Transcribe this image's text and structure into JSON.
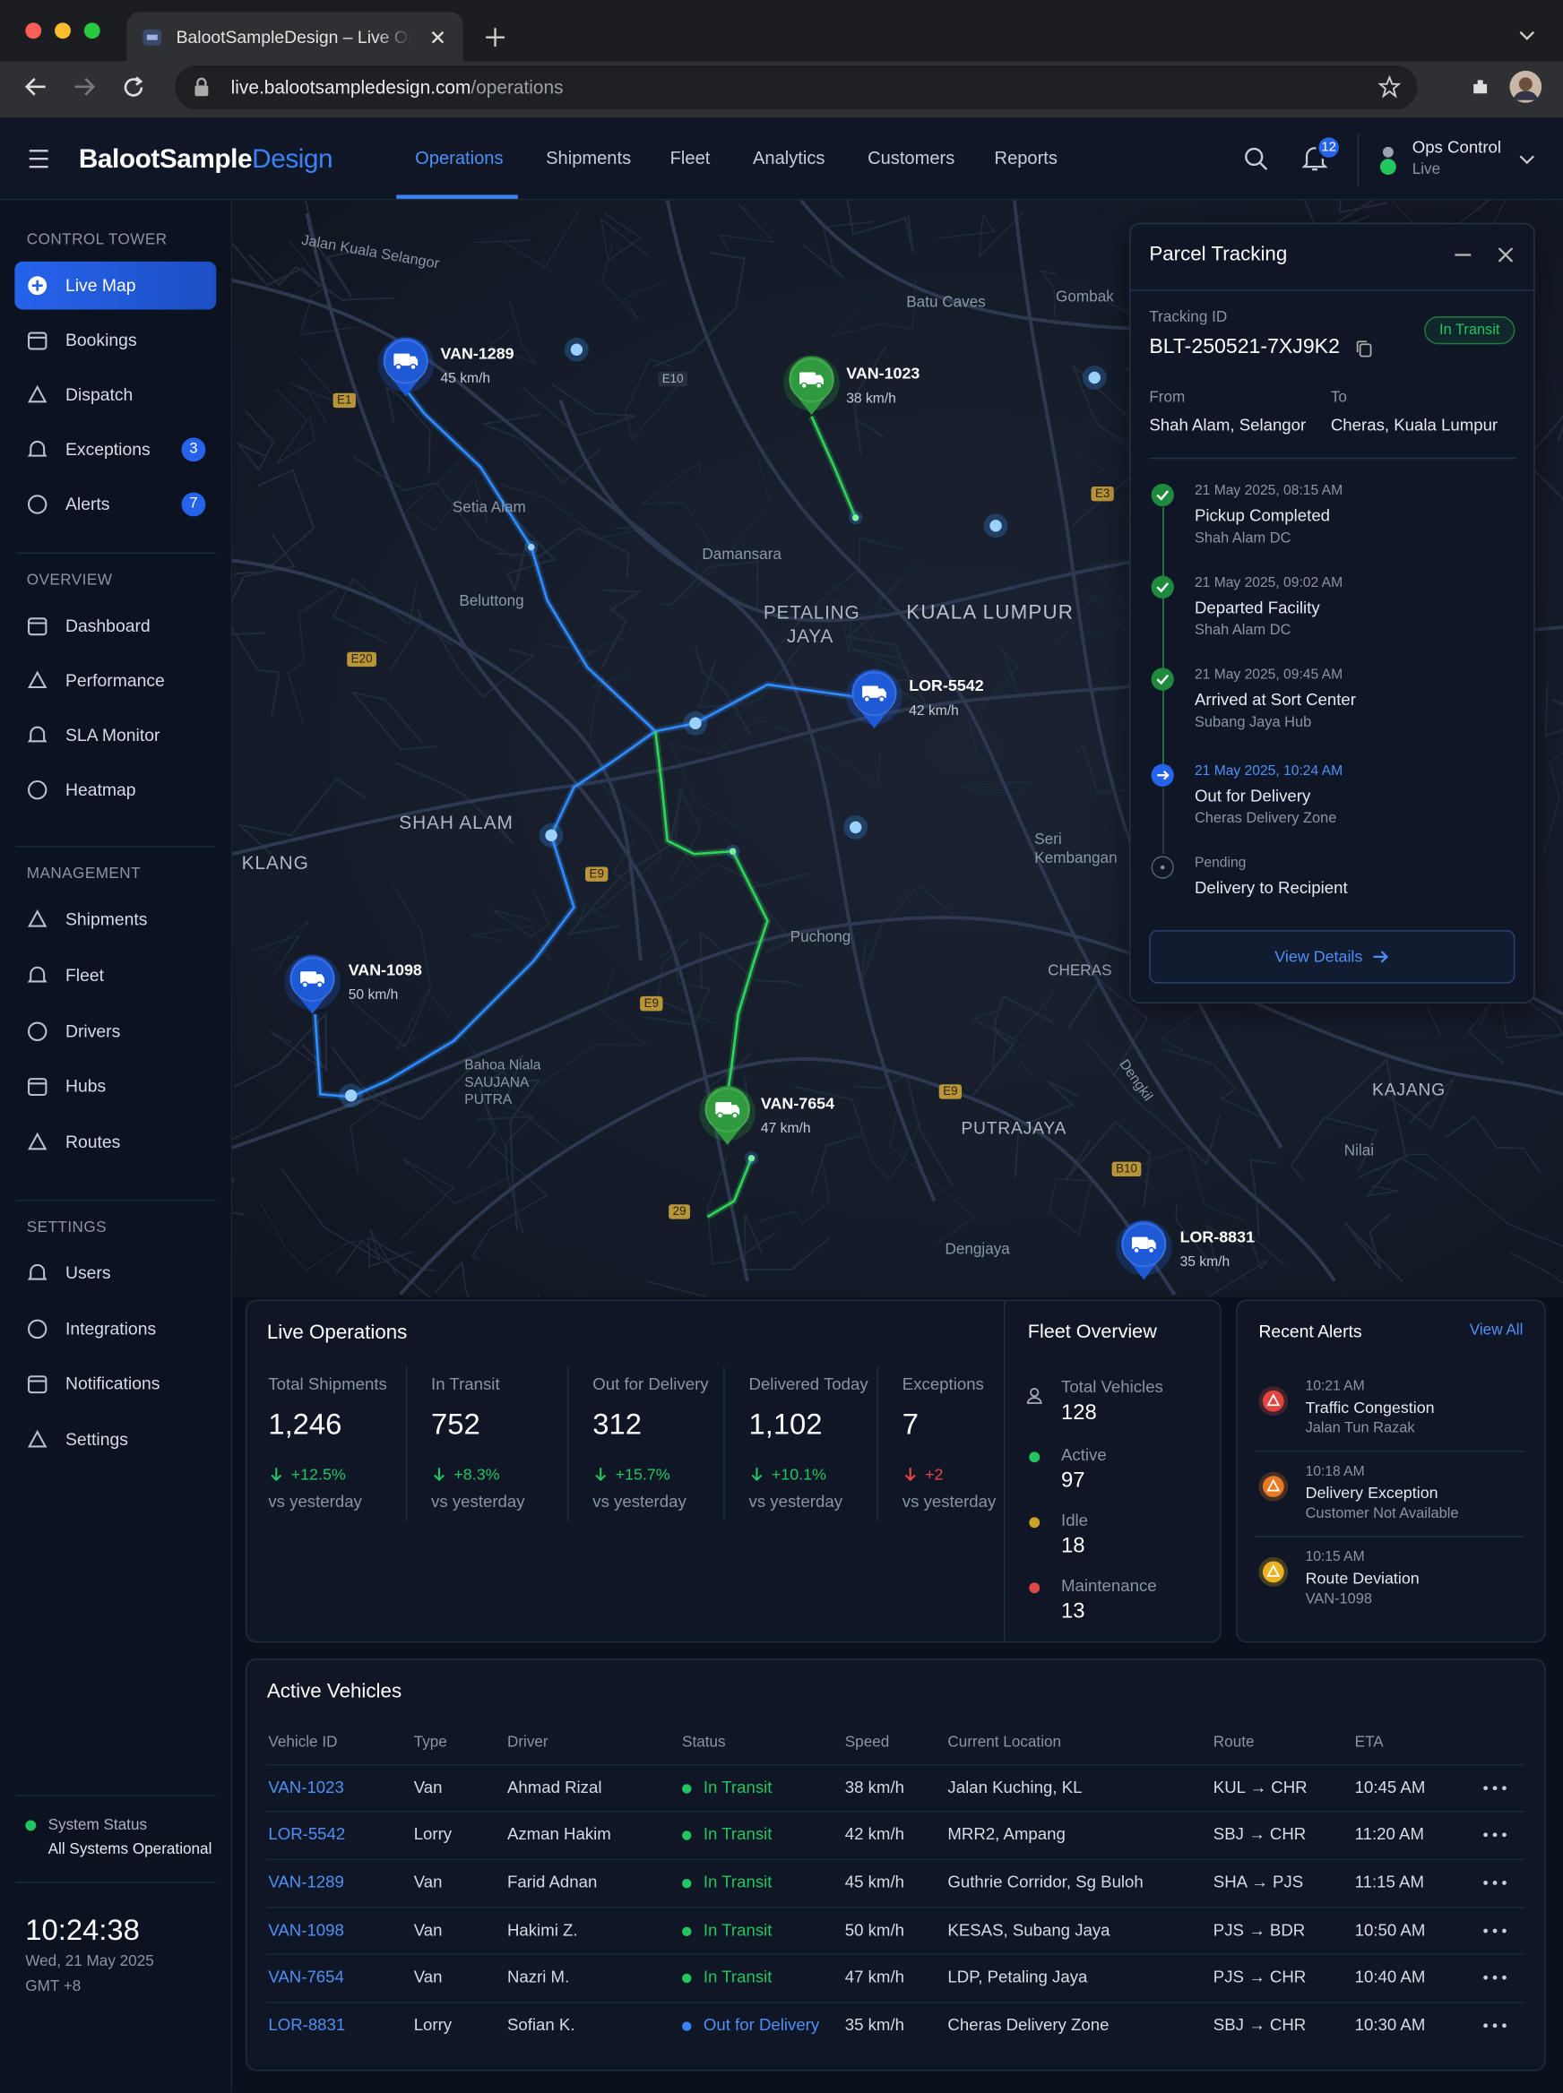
{
  "browser": {
    "tab_title": "BalootSampleDesign – Live Oper",
    "url_host": "live.balootsampledesign.com",
    "url_path": "/operations"
  },
  "header": {
    "brand_main": "BalootSample",
    "brand_accent": "Design",
    "nav": [
      "Operations",
      "Shipments",
      "Fleet",
      "Analytics",
      "Customers",
      "Reports"
    ],
    "notifications": "12",
    "user_name": "Ops Control",
    "user_status": "Live"
  },
  "sidebar": {
    "sections": [
      {
        "title": "CONTROL TOWER",
        "items": [
          {
            "label": "Live Map"
          },
          {
            "label": "Bookings"
          },
          {
            "label": "Dispatch"
          },
          {
            "label": "Exceptions",
            "badge": "3"
          },
          {
            "label": "Alerts",
            "badge": "7"
          }
        ]
      },
      {
        "title": "OVERVIEW",
        "items": [
          {
            "label": "Dashboard"
          },
          {
            "label": "Performance"
          },
          {
            "label": "SLA Monitor"
          },
          {
            "label": "Heatmap"
          }
        ]
      },
      {
        "title": "MANAGEMENT",
        "items": [
          {
            "label": "Shipments"
          },
          {
            "label": "Fleet"
          },
          {
            "label": "Drivers"
          },
          {
            "label": "Hubs"
          },
          {
            "label": "Routes"
          }
        ]
      },
      {
        "title": "SETTINGS",
        "items": [
          {
            "label": "Users"
          },
          {
            "label": "Integrations"
          },
          {
            "label": "Notifications"
          },
          {
            "label": "Settings"
          }
        ]
      }
    ],
    "system_status_title": "System Status",
    "system_status": "All Systems Operational",
    "clock": "10:24:38",
    "date": "Wed, 21 May 2025",
    "timezone": "GMT +8"
  },
  "map": {
    "places": [
      "Jalan Kuala Selangor",
      "Batu Caves",
      "Gombak",
      "Setia Alam",
      "Damansara",
      "PETALING JAYA",
      "Beluttong",
      "KUALA LUMPUR",
      "SHAH ALAM",
      "KLANG",
      "Seri Kembangan",
      "Puchong",
      "CHERAS",
      "Bahoa Niala SAUJANA PUTRA",
      "KAJANG",
      "PUTRAJAYA",
      "Dengkil",
      "Nilai",
      "Dengjaya"
    ],
    "roads": [
      "E1",
      "E10",
      "E3",
      "E20",
      "E9",
      "E9",
      "E9",
      "B10",
      "29"
    ],
    "vehicles": [
      {
        "id": "VAN-1289",
        "speed": "45 km/h"
      },
      {
        "id": "VAN-1023",
        "speed": "38 km/h"
      },
      {
        "id": "LOR-5542",
        "speed": "42 km/h"
      },
      {
        "id": "VAN-1098",
        "speed": "50 km/h"
      },
      {
        "id": "VAN-7654",
        "speed": "47 km/h"
      },
      {
        "id": "LOR-8831",
        "speed": "35 km/h"
      }
    ]
  },
  "tracking": {
    "title": "Parcel Tracking",
    "id_label": "Tracking ID",
    "id": "BLT-250521-7XJ9K2",
    "status": "In Transit",
    "from_label": "From",
    "from": "Shah Alam, Selangor",
    "to_label": "To",
    "to": "Cheras, Kuala Lumpur",
    "steps": [
      {
        "time": "21 May 2025, 08:15 AM",
        "title": "Pickup Completed",
        "place": "Shah Alam DC"
      },
      {
        "time": "21 May 2025, 09:02 AM",
        "title": "Departed Facility",
        "place": "Shah Alam DC"
      },
      {
        "time": "21 May 2025, 09:45 AM",
        "title": "Arrived at Sort Center",
        "place": "Subang Jaya Hub"
      },
      {
        "time": "21 May 2025, 10:24 AM",
        "title": "Out for Delivery",
        "place": "Cheras Delivery Zone"
      },
      {
        "time": "Pending",
        "title": "Delivery to Recipient"
      }
    ],
    "button": "View Details"
  },
  "live_operations": {
    "title": "Live Operations",
    "metrics": [
      {
        "label": "Total Shipments",
        "value": "1,246",
        "change": "+12.5%",
        "compare": "vs yesterday"
      },
      {
        "label": "In Transit",
        "value": "752",
        "change": "+8.3%",
        "compare": "vs yesterday"
      },
      {
        "label": "Out for Delivery",
        "value": "312",
        "change": "+15.7%",
        "compare": "vs yesterday"
      },
      {
        "label": "Delivered Today",
        "value": "1,102",
        "change": "+10.1%",
        "compare": "vs yesterday"
      },
      {
        "label": "Exceptions",
        "value": "7",
        "change": "+2",
        "compare": "vs yesterday"
      }
    ]
  },
  "fleet_overview": {
    "title": "Fleet Overview",
    "items": [
      {
        "label": "Total Vehicles",
        "value": "128"
      },
      {
        "label": "Active",
        "value": "97"
      },
      {
        "label": "Idle",
        "value": "18"
      },
      {
        "label": "Maintenance",
        "value": "13"
      }
    ]
  },
  "alerts": {
    "title": "Recent Alerts",
    "link": "View All",
    "items": [
      {
        "time": "10:21 AM",
        "title": "Traffic Congestion",
        "detail": "Jalan Tun Razak"
      },
      {
        "time": "10:18 AM",
        "title": "Delivery Exception",
        "detail": "Customer Not Available"
      },
      {
        "time": "10:15 AM",
        "title": "Route Deviation",
        "detail": "VAN-1098"
      }
    ]
  },
  "vehicles_table": {
    "title": "Active Vehicles",
    "columns": [
      "Vehicle ID",
      "Type",
      "Driver",
      "Status",
      "Speed",
      "Current Location",
      "Route",
      "ETA"
    ],
    "rows": [
      [
        "VAN-1023",
        "Van",
        "Ahmad Rizal",
        "In Transit",
        "38 km/h",
        "Jalan Kuching, KL",
        "KUL → CHR",
        "10:45 AM"
      ],
      [
        "LOR-5542",
        "Lorry",
        "Azman Hakim",
        "In Transit",
        "42 km/h",
        "MRR2, Ampang",
        "SBJ → CHR",
        "11:20 AM"
      ],
      [
        "VAN-1289",
        "Van",
        "Farid Adnan",
        "In Transit",
        "45 km/h",
        "Guthrie Corridor, Sg Buloh",
        "SHA → PJS",
        "11:15 AM"
      ],
      [
        "VAN-1098",
        "Van",
        "Hakimi Z.",
        "In Transit",
        "50 km/h",
        "KESAS, Subang Jaya",
        "PJS → BDR",
        "10:50 AM"
      ],
      [
        "VAN-7654",
        "Van",
        "Nazri M.",
        "In Transit",
        "47 km/h",
        "LDP, Petaling Jaya",
        "PJS → CHR",
        "10:40 AM"
      ],
      [
        "LOR-8831",
        "Lorry",
        "Sofian K.",
        "Out for Delivery",
        "35 km/h",
        "Cheras Delivery Zone",
        "SBJ → CHR",
        "10:30 AM"
      ]
    ]
  }
}
